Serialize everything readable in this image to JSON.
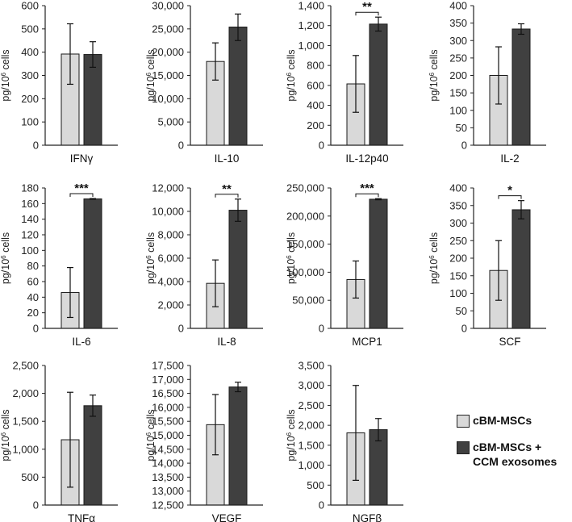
{
  "colors": {
    "series1": "#d9d9d9",
    "series2": "#404040",
    "axis": "#222222",
    "text": "#111111"
  },
  "legend": {
    "series1": "cBM-MSCs",
    "series2_line1": "cBM-MSCs +",
    "series2_line2": "CCM exosomes"
  },
  "chart_data": [
    {
      "type": "bar",
      "title": "IFNγ",
      "ylabel_main": "pg/10",
      "ylabel_sup": "6",
      "ylabel_tail": " cells",
      "ylim": [
        0,
        600
      ],
      "ticks": [
        0,
        100,
        200,
        300,
        400,
        500,
        600
      ],
      "tick_labels": [
        "0",
        "100",
        "200",
        "300",
        "400",
        "500",
        "600"
      ],
      "series": [
        {
          "name": "cBM-MSCs",
          "value": 392,
          "err_low": 262,
          "err_high": 522
        },
        {
          "name": "cBM-MSCs + CCM exosomes",
          "value": 390,
          "err_low": 335,
          "err_high": 445
        }
      ],
      "significance": ""
    },
    {
      "type": "bar",
      "title": "IL-10",
      "ylabel_main": "pg/10",
      "ylabel_sup": "6",
      "ylabel_tail": " cells",
      "ylim": [
        0,
        30000
      ],
      "ticks": [
        0,
        5000,
        10000,
        15000,
        20000,
        25000,
        30000
      ],
      "tick_labels": [
        "0",
        "5,000",
        "10,000",
        "15,000",
        "20,000",
        "25,000",
        "30,000"
      ],
      "series": [
        {
          "name": "cBM-MSCs",
          "value": 18000,
          "err_low": 14000,
          "err_high": 22000
        },
        {
          "name": "cBM-MSCs + CCM exosomes",
          "value": 25400,
          "err_low": 22500,
          "err_high": 28200
        }
      ],
      "significance": ""
    },
    {
      "type": "bar",
      "title": "IL-12p40",
      "ylabel_main": "pg/10",
      "ylabel_sup": "6",
      "ylabel_tail": " cells",
      "ylim": [
        0,
        1400
      ],
      "ticks": [
        0,
        200,
        400,
        600,
        800,
        1000,
        1200,
        1400
      ],
      "tick_labels": [
        "0",
        "200",
        "400",
        "600",
        "800",
        "1,000",
        "1,200",
        "1,400"
      ],
      "series": [
        {
          "name": "cBM-MSCs",
          "value": 615,
          "err_low": 330,
          "err_high": 900
        },
        {
          "name": "cBM-MSCs + CCM exosomes",
          "value": 1215,
          "err_low": 1145,
          "err_high": 1285
        }
      ],
      "significance": "**"
    },
    {
      "type": "bar",
      "title": "IL-2",
      "ylabel_main": "pg/10",
      "ylabel_sup": "6",
      "ylabel_tail": " cells",
      "ylim": [
        0,
        400
      ],
      "ticks": [
        0,
        50,
        100,
        150,
        200,
        250,
        300,
        350,
        400
      ],
      "tick_labels": [
        "0",
        "50",
        "100",
        "150",
        "200",
        "250",
        "300",
        "350",
        "400"
      ],
      "series": [
        {
          "name": "cBM-MSCs",
          "value": 200,
          "err_low": 118,
          "err_high": 282
        },
        {
          "name": "cBM-MSCs + CCM exosomes",
          "value": 333,
          "err_low": 318,
          "err_high": 348
        }
      ],
      "significance": ""
    },
    {
      "type": "bar",
      "title": "IL-6",
      "ylabel_main": "pg/10",
      "ylabel_sup": "6",
      "ylabel_tail": " cells",
      "ylim": [
        0,
        180
      ],
      "ticks": [
        0,
        20,
        40,
        60,
        80,
        100,
        120,
        140,
        160,
        180
      ],
      "tick_labels": [
        "0",
        "20",
        "40",
        "60",
        "80",
        "100",
        "120",
        "140",
        "160",
        "180"
      ],
      "series": [
        {
          "name": "cBM-MSCs",
          "value": 46,
          "err_low": 14,
          "err_high": 78
        },
        {
          "name": "cBM-MSCs + CCM exosomes",
          "value": 166,
          "err_low": 165.5,
          "err_high": 166.5
        }
      ],
      "significance": "***"
    },
    {
      "type": "bar",
      "title": "IL-8",
      "ylabel_main": "pg/10",
      "ylabel_sup": "6",
      "ylabel_tail": " cells",
      "ylim": [
        0,
        12000
      ],
      "ticks": [
        0,
        2000,
        4000,
        6000,
        8000,
        10000,
        12000
      ],
      "tick_labels": [
        "0",
        "2,000",
        "4,000",
        "6,000",
        "8,000",
        "10,000",
        "12,000"
      ],
      "series": [
        {
          "name": "cBM-MSCs",
          "value": 3850,
          "err_low": 1850,
          "err_high": 5850
        },
        {
          "name": "cBM-MSCs + CCM exosomes",
          "value": 10100,
          "err_low": 9150,
          "err_high": 11050
        }
      ],
      "significance": "**"
    },
    {
      "type": "bar",
      "title": "MCP1",
      "ylabel_main": "pg/10",
      "ylabel_sup": "6",
      "ylabel_tail": " cells",
      "ylim": [
        0,
        250000
      ],
      "ticks": [
        0,
        50000,
        100000,
        150000,
        200000,
        250000
      ],
      "tick_labels": [
        "0",
        "50,000",
        "100,000",
        "150,000",
        "200,000",
        "250,000"
      ],
      "series": [
        {
          "name": "cBM-MSCs",
          "value": 87000,
          "err_low": 54000,
          "err_high": 120000
        },
        {
          "name": "cBM-MSCs + CCM exosomes",
          "value": 230000,
          "err_low": 229000,
          "err_high": 231000
        }
      ],
      "significance": "***"
    },
    {
      "type": "bar",
      "title": "SCF",
      "ylabel_main": "pg/10",
      "ylabel_sup": "6",
      "ylabel_tail": " cells",
      "ylim": [
        0,
        400
      ],
      "ticks": [
        0,
        50,
        100,
        150,
        200,
        250,
        300,
        350,
        400
      ],
      "tick_labels": [
        "0",
        "50",
        "100",
        "150",
        "200",
        "250",
        "300",
        "350",
        "400"
      ],
      "series": [
        {
          "name": "cBM-MSCs",
          "value": 165,
          "err_low": 80,
          "err_high": 250
        },
        {
          "name": "cBM-MSCs + CCM exosomes",
          "value": 338,
          "err_low": 312,
          "err_high": 364
        }
      ],
      "significance": "*"
    },
    {
      "type": "bar",
      "title": "TNFα",
      "ylabel_main": "pg/10",
      "ylabel_sup": "6",
      "ylabel_tail": " cells",
      "ylim": [
        0,
        2500
      ],
      "ticks": [
        0,
        500,
        1000,
        1500,
        2000,
        2500
      ],
      "tick_labels": [
        "0",
        "500",
        "1,000",
        "1,500",
        "2,000",
        "2,500"
      ],
      "series": [
        {
          "name": "cBM-MSCs",
          "value": 1170,
          "err_low": 320,
          "err_high": 2020
        },
        {
          "name": "cBM-MSCs + CCM exosomes",
          "value": 1780,
          "err_low": 1590,
          "err_high": 1970
        }
      ],
      "significance": ""
    },
    {
      "type": "bar",
      "title": "VEGF",
      "ylabel_main": "pg/10",
      "ylabel_sup": "6",
      "ylabel_tail": " cells",
      "ylim": [
        12500,
        17500
      ],
      "ticks": [
        12500,
        13000,
        13500,
        14000,
        14500,
        15000,
        15500,
        16000,
        16500,
        17000,
        17500
      ],
      "tick_labels": [
        "12,500",
        "13,000",
        "13,500",
        "14,000",
        "14,500",
        "15,000",
        "15,500",
        "16,000",
        "16,500",
        "17,000",
        "17,500"
      ],
      "series": [
        {
          "name": "cBM-MSCs",
          "value": 15380,
          "err_low": 14300,
          "err_high": 16460
        },
        {
          "name": "cBM-MSCs + CCM exosomes",
          "value": 16730,
          "err_low": 16560,
          "err_high": 16900
        }
      ],
      "significance": ""
    },
    {
      "type": "bar",
      "title": "NGFβ",
      "ylabel_main": "pg/10",
      "ylabel_sup": "6",
      "ylabel_tail": " cells",
      "ylim": [
        0,
        3500
      ],
      "ticks": [
        0,
        500,
        1000,
        1500,
        2000,
        2500,
        3000,
        3500
      ],
      "tick_labels": [
        "0",
        "500",
        "1,000",
        "1,500",
        "2,000",
        "2,500",
        "3,000",
        "3,500"
      ],
      "series": [
        {
          "name": "cBM-MSCs",
          "value": 1810,
          "err_low": 620,
          "err_high": 3000
        },
        {
          "name": "cBM-MSCs + CCM exosomes",
          "value": 1890,
          "err_low": 1610,
          "err_high": 2170
        }
      ],
      "significance": ""
    }
  ]
}
